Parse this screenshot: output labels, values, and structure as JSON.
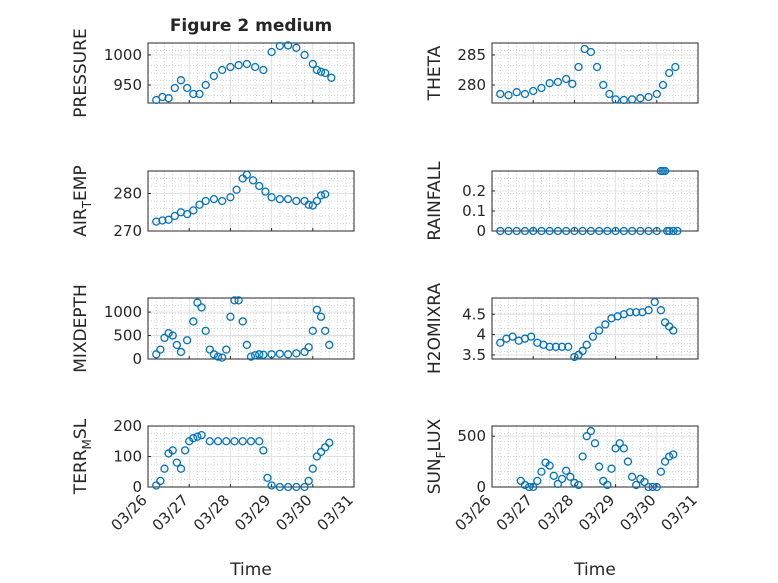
{
  "figure": {
    "title": "Figure 2 medium",
    "xlabel": "Time",
    "xticks": [
      "03/26",
      "03/27",
      "03/28",
      "03/29",
      "03/30",
      "03/31"
    ],
    "marker_color": "#0072BD"
  },
  "chart_data": [
    {
      "type": "scatter",
      "name": "PRESSURE",
      "ylabel_main": "PRESSURE",
      "ylabel_sub": "",
      "ylabel_tail": "",
      "xlim": [
        0,
        5
      ],
      "ylim": [
        920,
        1020
      ],
      "yticks": [
        950,
        1000
      ],
      "ytick_labels": [
        "950",
        "1000"
      ],
      "x": [
        0.2,
        0.35,
        0.5,
        0.65,
        0.8,
        0.95,
        1.1,
        1.25,
        1.4,
        1.6,
        1.8,
        2.0,
        2.2,
        2.4,
        2.6,
        2.8,
        3.0,
        3.2,
        3.4,
        3.6,
        3.8,
        4.0,
        4.1,
        4.2,
        4.3,
        4.45
      ],
      "y": [
        925,
        930,
        928,
        945,
        958,
        945,
        935,
        935,
        950,
        965,
        975,
        980,
        983,
        985,
        980,
        975,
        1005,
        1015,
        1016,
        1012,
        1000,
        985,
        975,
        972,
        970,
        962
      ]
    },
    {
      "type": "scatter",
      "name": "THETA",
      "ylabel_main": "THETA",
      "ylabel_sub": "",
      "ylabel_tail": "",
      "xlim": [
        0,
        5
      ],
      "ylim": [
        277,
        287
      ],
      "yticks": [
        280,
        285
      ],
      "ytick_labels": [
        "280",
        "285"
      ],
      "x": [
        0.2,
        0.4,
        0.6,
        0.8,
        1.0,
        1.2,
        1.4,
        1.6,
        1.8,
        1.95,
        2.1,
        2.25,
        2.4,
        2.55,
        2.7,
        2.85,
        3.0,
        3.2,
        3.4,
        3.6,
        3.8,
        4.0,
        4.15,
        4.3,
        4.45
      ],
      "y": [
        278.5,
        278.3,
        278.8,
        278.5,
        279,
        279.5,
        280.3,
        280.5,
        281,
        280.2,
        283,
        286,
        285.5,
        283,
        280,
        278.5,
        277.6,
        277.5,
        277.6,
        277.8,
        278,
        278.5,
        280,
        282,
        283
      ]
    },
    {
      "type": "scatter",
      "name": "AIR_TEMP",
      "ylabel_main": "AIR",
      "ylabel_sub": "T",
      "ylabel_tail": "EMP",
      "xlim": [
        0,
        5
      ],
      "ylim": [
        270,
        286
      ],
      "yticks": [
        270,
        280
      ],
      "ytick_labels": [
        "270",
        "280"
      ],
      "x": [
        0.2,
        0.35,
        0.5,
        0.65,
        0.8,
        0.95,
        1.1,
        1.25,
        1.4,
        1.6,
        1.8,
        2.0,
        2.15,
        2.3,
        2.4,
        2.55,
        2.7,
        2.85,
        3.0,
        3.2,
        3.4,
        3.6,
        3.8,
        3.9,
        4.0,
        4.1,
        4.2,
        4.3
      ],
      "y": [
        272.5,
        272.8,
        273,
        274,
        275,
        274.5,
        275.5,
        277,
        278,
        278.5,
        278,
        279,
        281,
        284,
        285,
        283.5,
        282,
        280.5,
        279,
        278.5,
        278.5,
        278,
        278,
        277,
        276.8,
        278,
        279.5,
        279.8
      ]
    },
    {
      "type": "scatter",
      "name": "RAINFALL",
      "ylabel_main": "RAINFALL",
      "ylabel_sub": "",
      "ylabel_tail": "",
      "xlim": [
        0,
        5
      ],
      "ylim": [
        0,
        0.3
      ],
      "yticks": [
        0,
        0.1,
        0.2
      ],
      "ytick_labels": [
        "0",
        "0.1",
        "0.2"
      ],
      "x": [
        0.2,
        0.4,
        0.6,
        0.8,
        1.0,
        1.2,
        1.4,
        1.6,
        1.8,
        2.0,
        2.2,
        2.4,
        2.6,
        2.8,
        3.0,
        3.2,
        3.4,
        3.6,
        3.8,
        4.0,
        4.1,
        4.15,
        4.2,
        4.25,
        4.3,
        4.4,
        4.5
      ],
      "y": [
        0,
        0,
        0,
        0,
        0,
        0,
        0,
        0,
        0,
        0,
        0,
        0,
        0,
        0,
        0,
        0,
        0,
        0,
        0,
        0,
        0.3,
        0.3,
        0.3,
        0,
        0,
        0,
        0
      ]
    },
    {
      "type": "scatter",
      "name": "MIXDEPTH",
      "ylabel_main": "MIXDEPTH",
      "ylabel_sub": "",
      "ylabel_tail": "",
      "xlim": [
        0,
        5
      ],
      "ylim": [
        0,
        1300
      ],
      "yticks": [
        0,
        500,
        1000
      ],
      "ytick_labels": [
        "0",
        "500",
        "1000"
      ],
      "x": [
        0.2,
        0.3,
        0.4,
        0.5,
        0.6,
        0.7,
        0.8,
        0.95,
        1.1,
        1.2,
        1.3,
        1.4,
        1.5,
        1.6,
        1.7,
        1.8,
        1.9,
        2.0,
        2.1,
        2.2,
        2.3,
        2.4,
        2.5,
        2.6,
        2.7,
        2.8,
        3.0,
        3.2,
        3.4,
        3.6,
        3.8,
        3.9,
        4.0,
        4.1,
        4.2,
        4.3,
        4.4
      ],
      "y": [
        100,
        200,
        450,
        550,
        500,
        300,
        150,
        400,
        800,
        1200,
        1100,
        600,
        200,
        100,
        50,
        30,
        200,
        900,
        1250,
        1250,
        800,
        300,
        50,
        80,
        100,
        90,
        100,
        110,
        100,
        120,
        150,
        250,
        600,
        1050,
        900,
        600,
        300
      ]
    },
    {
      "type": "scatter",
      "name": "H2OMIXRA",
      "ylabel_main": "H2OMIXRA",
      "ylabel_sub": "",
      "ylabel_tail": "",
      "xlim": [
        0,
        5
      ],
      "ylim": [
        3.4,
        4.9
      ],
      "yticks": [
        3.5,
        4,
        4.5
      ],
      "ytick_labels": [
        "3.5",
        "4",
        "4.5"
      ],
      "x": [
        0.2,
        0.35,
        0.5,
        0.65,
        0.8,
        0.95,
        1.1,
        1.25,
        1.4,
        1.55,
        1.7,
        1.85,
        2.0,
        2.1,
        2.2,
        2.3,
        2.45,
        2.6,
        2.75,
        2.9,
        3.05,
        3.2,
        3.35,
        3.5,
        3.65,
        3.8,
        3.95,
        4.1,
        4.2,
        4.3,
        4.4
      ],
      "y": [
        3.8,
        3.9,
        3.95,
        3.85,
        3.9,
        3.95,
        3.8,
        3.75,
        3.7,
        3.7,
        3.7,
        3.7,
        3.45,
        3.5,
        3.6,
        3.75,
        3.95,
        4.1,
        4.25,
        4.4,
        4.45,
        4.5,
        4.55,
        4.55,
        4.55,
        4.6,
        4.8,
        4.6,
        4.3,
        4.2,
        4.1
      ]
    },
    {
      "type": "scatter",
      "name": "TERR_MSL",
      "ylabel_main": "TERR",
      "ylabel_sub": "M",
      "ylabel_tail": "SL",
      "xlim": [
        0,
        5
      ],
      "ylim": [
        0,
        200
      ],
      "yticks": [
        0,
        100,
        200
      ],
      "ytick_labels": [
        "0",
        "100",
        "200"
      ],
      "x": [
        0.2,
        0.3,
        0.4,
        0.5,
        0.6,
        0.7,
        0.8,
        0.9,
        1.0,
        1.1,
        1.2,
        1.3,
        1.5,
        1.7,
        1.9,
        2.1,
        2.3,
        2.5,
        2.7,
        2.8,
        2.9,
        3.0,
        3.2,
        3.4,
        3.6,
        3.8,
        3.9,
        4.0,
        4.1,
        4.2,
        4.3,
        4.4
      ],
      "y": [
        5,
        20,
        60,
        110,
        120,
        80,
        60,
        120,
        150,
        160,
        165,
        170,
        150,
        150,
        150,
        150,
        150,
        150,
        150,
        120,
        30,
        5,
        0,
        0,
        0,
        0,
        20,
        60,
        100,
        115,
        130,
        145
      ]
    },
    {
      "type": "scatter",
      "name": "SUN_FLUX",
      "ylabel_main": "SUN",
      "ylabel_sub": "F",
      "ylabel_tail": "LUX",
      "xlim": [
        0,
        5
      ],
      "ylim": [
        0,
        600
      ],
      "yticks": [
        0,
        500
      ],
      "ytick_labels": [
        "0",
        "500"
      ],
      "x": [
        0.7,
        0.8,
        0.9,
        1.0,
        1.1,
        1.2,
        1.3,
        1.4,
        1.5,
        1.6,
        1.7,
        1.8,
        1.9,
        2.0,
        2.1,
        2.2,
        2.3,
        2.4,
        2.5,
        2.6,
        2.7,
        2.8,
        2.9,
        3.0,
        3.1,
        3.2,
        3.3,
        3.4,
        3.5,
        3.6,
        3.7,
        3.8,
        3.9,
        4.0,
        4.1,
        4.2,
        4.3,
        4.4
      ],
      "y": [
        60,
        20,
        0,
        0,
        60,
        150,
        240,
        210,
        110,
        30,
        80,
        160,
        100,
        40,
        20,
        300,
        500,
        550,
        430,
        200,
        60,
        20,
        180,
        380,
        430,
        380,
        250,
        100,
        20,
        80,
        50,
        0,
        0,
        0,
        150,
        250,
        300,
        320
      ]
    }
  ]
}
